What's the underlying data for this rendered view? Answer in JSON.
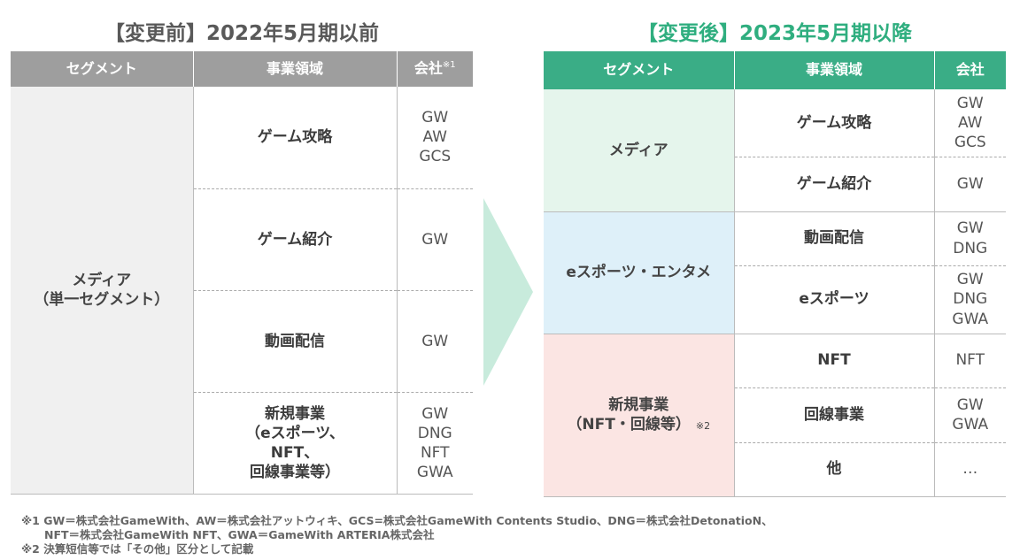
{
  "before": {
    "title": "【変更前】2022年5月期以前",
    "headers": {
      "segment": "セグメント",
      "area": "事業領域",
      "company": "会社",
      "company_note": "※1"
    },
    "segment": [
      "メディア",
      "（単一セグメント）"
    ],
    "rows": [
      {
        "area": [
          "ゲーム攻略"
        ],
        "companies": [
          "GW",
          "AW",
          "GCS"
        ]
      },
      {
        "area": [
          "ゲーム紹介"
        ],
        "companies": [
          "GW"
        ]
      },
      {
        "area": [
          "動画配信"
        ],
        "companies": [
          "GW"
        ]
      },
      {
        "area": [
          "新規事業",
          "（eスポーツ、",
          "NFT、",
          "回線事業等）"
        ],
        "companies": [
          "GW",
          "DNG",
          "NFT",
          "GWA"
        ]
      }
    ]
  },
  "after": {
    "title": "【変更後】2023年5月期以降",
    "headers": {
      "segment": "セグメント",
      "area": "事業領域",
      "company": "会社"
    },
    "segments": [
      {
        "name": [
          "メディア"
        ],
        "rows": [
          {
            "area": "ゲーム攻略",
            "companies": [
              "GW",
              "AW",
              "GCS"
            ]
          },
          {
            "area": "ゲーム紹介",
            "companies": [
              "GW"
            ]
          }
        ]
      },
      {
        "name": [
          "eスポーツ・エンタメ"
        ],
        "rows": [
          {
            "area": "動画配信",
            "companies": [
              "GW",
              "DNG"
            ]
          },
          {
            "area": "eスポーツ",
            "companies": [
              "GW",
              "DNG",
              "GWA"
            ]
          }
        ]
      },
      {
        "name": [
          "新規事業",
          "（NFT・回線等）"
        ],
        "note": "※2",
        "rows": [
          {
            "area": "NFT",
            "companies": [
              "NFT"
            ]
          },
          {
            "area": "回線事業",
            "companies": [
              "GW",
              "GWA"
            ]
          },
          {
            "area": "他",
            "companies": [
              "…"
            ]
          }
        ]
      }
    ]
  },
  "footnotes": [
    "※1 GW＝株式会社GameWith、AW＝株式会社アットウィキ、GCS=株式会社GameWith Contents Studio、DNG＝株式会社DetonatioN、",
    "NFT＝株式会社GameWith NFT、GWA＝GameWith ARTERIA株式会社",
    "※2 決算短信等では「その他」区分として記載"
  ],
  "colors": {
    "before_header": "#9e9e9e",
    "after_header": "#3aad86",
    "after_title": "#2fae7f",
    "arrow": "#c8ebdc"
  }
}
